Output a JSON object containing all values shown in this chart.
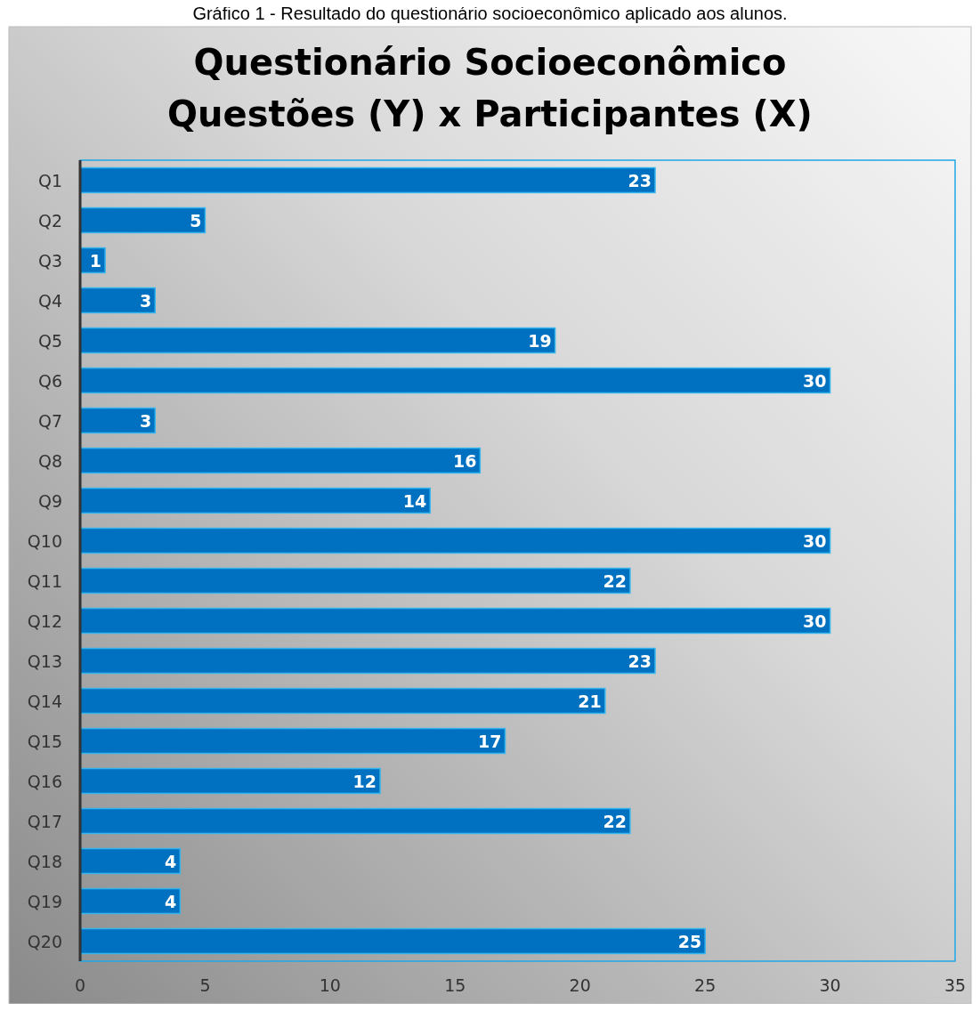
{
  "chart_data": {
    "type": "bar",
    "orientation": "horizontal",
    "title": "Questionário Socioeconômico\nQuestões (Y) x  Participantes (X)",
    "annotations": [
      "Gráfico 1 - Resultado do questionário socioeconômico aplicado aos alunos."
    ],
    "categories": [
      "Q1",
      "Q2",
      "Q3",
      "Q4",
      "Q5",
      "Q6",
      "Q7",
      "Q8",
      "Q9",
      "Q10",
      "Q11",
      "Q12",
      "Q13",
      "Q14",
      "Q15",
      "Q16",
      "Q17",
      "Q18",
      "Q19",
      "Q20"
    ],
    "values": [
      23,
      5,
      1,
      3,
      19,
      30,
      3,
      16,
      14,
      30,
      22,
      30,
      23,
      21,
      17,
      12,
      22,
      4,
      4,
      25
    ],
    "color": "#0070c0",
    "data_labels": true,
    "xlim": [
      0,
      35
    ],
    "xticks": [
      0,
      5,
      10,
      15,
      20,
      25,
      30,
      35
    ],
    "grid": false
  }
}
